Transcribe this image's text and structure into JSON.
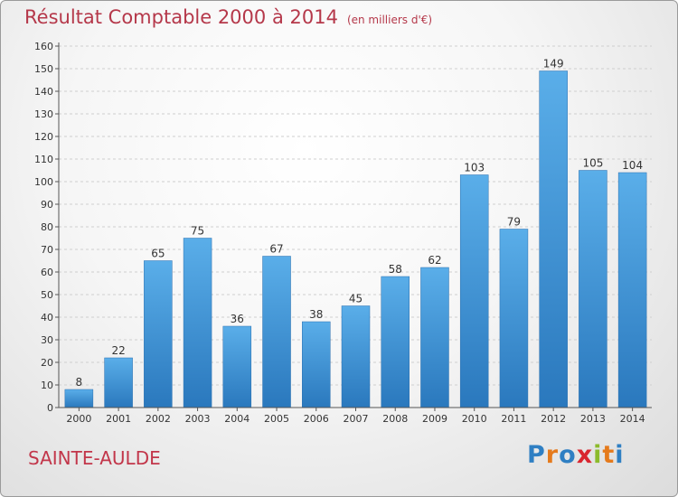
{
  "header": {
    "title": "Résultat Comptable 2000 à 2014",
    "subtitle": "(en milliers d'€)"
  },
  "footer": {
    "commune": "SAINTE-AULDE",
    "logo_text": "Proxiti",
    "logo_colors": [
      "#2f7fc3",
      "#e57a1c",
      "#2f7fc3",
      "#d9262f",
      "#8cbb2c",
      "#e57a1c",
      "#2f7fc3"
    ]
  },
  "chart_data": {
    "type": "bar",
    "title": "Résultat Comptable 2000 à 2014",
    "subtitle": "(en milliers d'€)",
    "categories": [
      "2000",
      "2001",
      "2002",
      "2003",
      "2004",
      "2005",
      "2006",
      "2007",
      "2008",
      "2009",
      "2010",
      "2011",
      "2012",
      "2013",
      "2014"
    ],
    "values": [
      8,
      22,
      65,
      75,
      36,
      67,
      38,
      45,
      58,
      62,
      103,
      79,
      149,
      105,
      104
    ],
    "yticks": [
      0,
      10,
      20,
      30,
      40,
      50,
      60,
      70,
      80,
      90,
      100,
      110,
      120,
      130,
      140,
      150,
      160
    ],
    "ylim": [
      0,
      160
    ],
    "grid": true,
    "bar_color": "#3d8fd6"
  }
}
